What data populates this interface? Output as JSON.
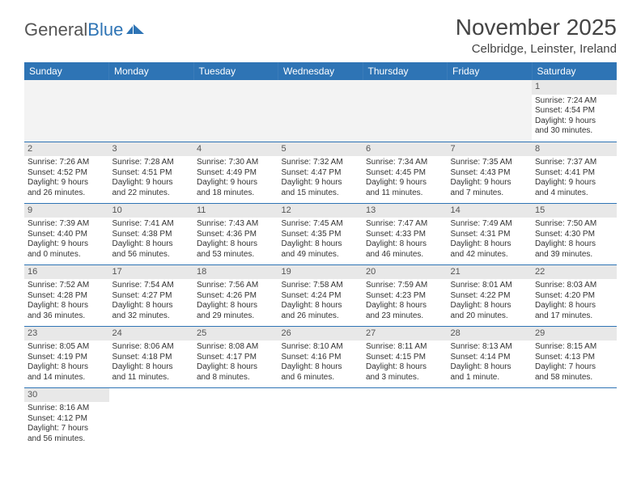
{
  "logo": {
    "text1": "General",
    "text2": "Blue"
  },
  "title": "November 2025",
  "location": "Celbridge, Leinster, Ireland",
  "colors": {
    "header_bg": "#2e74b5",
    "header_text": "#ffffff",
    "daynum_bg": "#e8e8e8",
    "border": "#2e74b5",
    "empty_bg": "#f3f3f3"
  },
  "layout": {
    "columns": 7,
    "rows": 6,
    "first_day_column_index": 6
  },
  "weekdays": [
    "Sunday",
    "Monday",
    "Tuesday",
    "Wednesday",
    "Thursday",
    "Friday",
    "Saturday"
  ],
  "days": [
    {
      "n": "1",
      "sr": "Sunrise: 7:24 AM",
      "ss": "Sunset: 4:54 PM",
      "dl1": "Daylight: 9 hours",
      "dl2": "and 30 minutes."
    },
    {
      "n": "2",
      "sr": "Sunrise: 7:26 AM",
      "ss": "Sunset: 4:52 PM",
      "dl1": "Daylight: 9 hours",
      "dl2": "and 26 minutes."
    },
    {
      "n": "3",
      "sr": "Sunrise: 7:28 AM",
      "ss": "Sunset: 4:51 PM",
      "dl1": "Daylight: 9 hours",
      "dl2": "and 22 minutes."
    },
    {
      "n": "4",
      "sr": "Sunrise: 7:30 AM",
      "ss": "Sunset: 4:49 PM",
      "dl1": "Daylight: 9 hours",
      "dl2": "and 18 minutes."
    },
    {
      "n": "5",
      "sr": "Sunrise: 7:32 AM",
      "ss": "Sunset: 4:47 PM",
      "dl1": "Daylight: 9 hours",
      "dl2": "and 15 minutes."
    },
    {
      "n": "6",
      "sr": "Sunrise: 7:34 AM",
      "ss": "Sunset: 4:45 PM",
      "dl1": "Daylight: 9 hours",
      "dl2": "and 11 minutes."
    },
    {
      "n": "7",
      "sr": "Sunrise: 7:35 AM",
      "ss": "Sunset: 4:43 PM",
      "dl1": "Daylight: 9 hours",
      "dl2": "and 7 minutes."
    },
    {
      "n": "8",
      "sr": "Sunrise: 7:37 AM",
      "ss": "Sunset: 4:41 PM",
      "dl1": "Daylight: 9 hours",
      "dl2": "and 4 minutes."
    },
    {
      "n": "9",
      "sr": "Sunrise: 7:39 AM",
      "ss": "Sunset: 4:40 PM",
      "dl1": "Daylight: 9 hours",
      "dl2": "and 0 minutes."
    },
    {
      "n": "10",
      "sr": "Sunrise: 7:41 AM",
      "ss": "Sunset: 4:38 PM",
      "dl1": "Daylight: 8 hours",
      "dl2": "and 56 minutes."
    },
    {
      "n": "11",
      "sr": "Sunrise: 7:43 AM",
      "ss": "Sunset: 4:36 PM",
      "dl1": "Daylight: 8 hours",
      "dl2": "and 53 minutes."
    },
    {
      "n": "12",
      "sr": "Sunrise: 7:45 AM",
      "ss": "Sunset: 4:35 PM",
      "dl1": "Daylight: 8 hours",
      "dl2": "and 49 minutes."
    },
    {
      "n": "13",
      "sr": "Sunrise: 7:47 AM",
      "ss": "Sunset: 4:33 PM",
      "dl1": "Daylight: 8 hours",
      "dl2": "and 46 minutes."
    },
    {
      "n": "14",
      "sr": "Sunrise: 7:49 AM",
      "ss": "Sunset: 4:31 PM",
      "dl1": "Daylight: 8 hours",
      "dl2": "and 42 minutes."
    },
    {
      "n": "15",
      "sr": "Sunrise: 7:50 AM",
      "ss": "Sunset: 4:30 PM",
      "dl1": "Daylight: 8 hours",
      "dl2": "and 39 minutes."
    },
    {
      "n": "16",
      "sr": "Sunrise: 7:52 AM",
      "ss": "Sunset: 4:28 PM",
      "dl1": "Daylight: 8 hours",
      "dl2": "and 36 minutes."
    },
    {
      "n": "17",
      "sr": "Sunrise: 7:54 AM",
      "ss": "Sunset: 4:27 PM",
      "dl1": "Daylight: 8 hours",
      "dl2": "and 32 minutes."
    },
    {
      "n": "18",
      "sr": "Sunrise: 7:56 AM",
      "ss": "Sunset: 4:26 PM",
      "dl1": "Daylight: 8 hours",
      "dl2": "and 29 minutes."
    },
    {
      "n": "19",
      "sr": "Sunrise: 7:58 AM",
      "ss": "Sunset: 4:24 PM",
      "dl1": "Daylight: 8 hours",
      "dl2": "and 26 minutes."
    },
    {
      "n": "20",
      "sr": "Sunrise: 7:59 AM",
      "ss": "Sunset: 4:23 PM",
      "dl1": "Daylight: 8 hours",
      "dl2": "and 23 minutes."
    },
    {
      "n": "21",
      "sr": "Sunrise: 8:01 AM",
      "ss": "Sunset: 4:22 PM",
      "dl1": "Daylight: 8 hours",
      "dl2": "and 20 minutes."
    },
    {
      "n": "22",
      "sr": "Sunrise: 8:03 AM",
      "ss": "Sunset: 4:20 PM",
      "dl1": "Daylight: 8 hours",
      "dl2": "and 17 minutes."
    },
    {
      "n": "23",
      "sr": "Sunrise: 8:05 AM",
      "ss": "Sunset: 4:19 PM",
      "dl1": "Daylight: 8 hours",
      "dl2": "and 14 minutes."
    },
    {
      "n": "24",
      "sr": "Sunrise: 8:06 AM",
      "ss": "Sunset: 4:18 PM",
      "dl1": "Daylight: 8 hours",
      "dl2": "and 11 minutes."
    },
    {
      "n": "25",
      "sr": "Sunrise: 8:08 AM",
      "ss": "Sunset: 4:17 PM",
      "dl1": "Daylight: 8 hours",
      "dl2": "and 8 minutes."
    },
    {
      "n": "26",
      "sr": "Sunrise: 8:10 AM",
      "ss": "Sunset: 4:16 PM",
      "dl1": "Daylight: 8 hours",
      "dl2": "and 6 minutes."
    },
    {
      "n": "27",
      "sr": "Sunrise: 8:11 AM",
      "ss": "Sunset: 4:15 PM",
      "dl1": "Daylight: 8 hours",
      "dl2": "and 3 minutes."
    },
    {
      "n": "28",
      "sr": "Sunrise: 8:13 AM",
      "ss": "Sunset: 4:14 PM",
      "dl1": "Daylight: 8 hours",
      "dl2": "and 1 minute."
    },
    {
      "n": "29",
      "sr": "Sunrise: 8:15 AM",
      "ss": "Sunset: 4:13 PM",
      "dl1": "Daylight: 7 hours",
      "dl2": "and 58 minutes."
    },
    {
      "n": "30",
      "sr": "Sunrise: 8:16 AM",
      "ss": "Sunset: 4:12 PM",
      "dl1": "Daylight: 7 hours",
      "dl2": "and 56 minutes."
    }
  ]
}
